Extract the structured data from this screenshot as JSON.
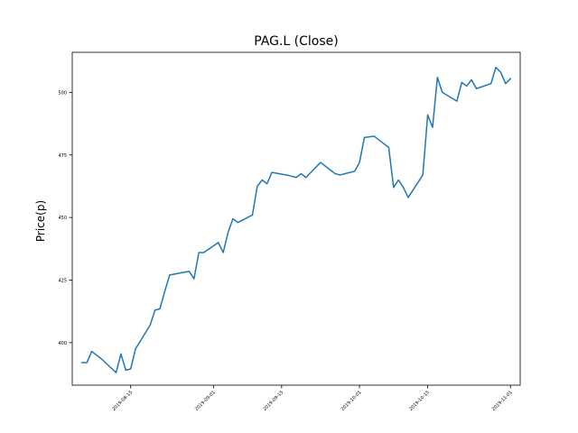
{
  "chart_data": {
    "type": "line",
    "title": "PAG.L (Close)",
    "xlabel": "",
    "ylabel": "Price(p)",
    "x_is_date": true,
    "xlim": [
      "2019-08-03",
      "2019-11-03"
    ],
    "ylim": [
      383,
      516
    ],
    "x_ticks": [
      "2019-08-15",
      "2019-09-01",
      "2019-09-15",
      "2019-10-01",
      "2019-10-15",
      "2019-11-01"
    ],
    "y_ticks": [
      400,
      425,
      450,
      475,
      500
    ],
    "grid": false,
    "legend": "none",
    "line_color": "#1f77b4",
    "series": [
      {
        "x": [
          "2019-08-05",
          "2019-08-06",
          "2019-08-07",
          "2019-08-08",
          "2019-08-09",
          "2019-08-12",
          "2019-08-13",
          "2019-08-14",
          "2019-08-15",
          "2019-08-16",
          "2019-08-19",
          "2019-08-20",
          "2019-08-21",
          "2019-08-22",
          "2019-08-23",
          "2019-08-27",
          "2019-08-28",
          "2019-08-29",
          "2019-08-30",
          "2019-09-02",
          "2019-09-03",
          "2019-09-04",
          "2019-09-05",
          "2019-09-06",
          "2019-09-09",
          "2019-09-10",
          "2019-09-11",
          "2019-09-12",
          "2019-09-13",
          "2019-09-16",
          "2019-09-17",
          "2019-09-18",
          "2019-09-19",
          "2019-09-20",
          "2019-09-23",
          "2019-09-24",
          "2019-09-25",
          "2019-09-26",
          "2019-09-27",
          "2019-09-30",
          "2019-10-01",
          "2019-10-02",
          "2019-10-03",
          "2019-10-04",
          "2019-10-07",
          "2019-10-08",
          "2019-10-09",
          "2019-10-10",
          "2019-10-11",
          "2019-10-14",
          "2019-10-15",
          "2019-10-16",
          "2019-10-17",
          "2019-10-18",
          "2019-10-21",
          "2019-10-22",
          "2019-10-23",
          "2019-10-24",
          "2019-10-25",
          "2019-10-28",
          "2019-10-29",
          "2019-10-30",
          "2019-10-31",
          "2019-11-01"
        ],
        "y": [
          392,
          392,
          396.5,
          395,
          393.5,
          388,
          395.5,
          389,
          389.5,
          397.5,
          407,
          413,
          413.5,
          420.5,
          427,
          428.5,
          425.5,
          436,
          436,
          440,
          436,
          444,
          449.5,
          448,
          451,
          462.5,
          465,
          463.5,
          468,
          467,
          466.5,
          466,
          467.5,
          466,
          472,
          470.5,
          469,
          467.5,
          467,
          468.5,
          472,
          482,
          482.2,
          482.5,
          478,
          462,
          465,
          462,
          458,
          467,
          491,
          486,
          506,
          500,
          496.5,
          504,
          502.5,
          505,
          501.5,
          503.5,
          510,
          508,
          503.5,
          505.5
        ]
      }
    ]
  }
}
